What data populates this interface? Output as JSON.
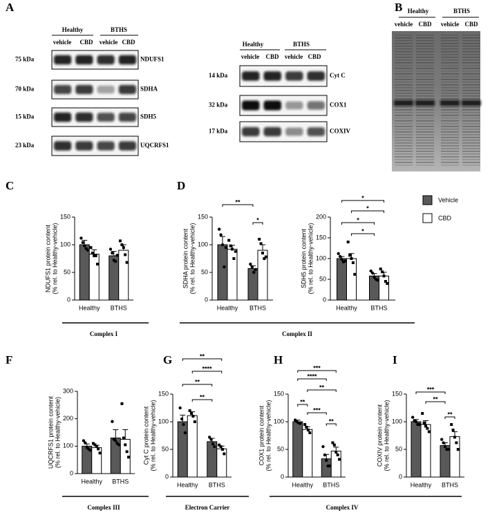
{
  "panels": [
    "A",
    "B",
    "C",
    "D",
    "F",
    "G",
    "H",
    "I"
  ],
  "blots": [
    {
      "groups": [
        "Healthy",
        "BTHS"
      ],
      "lanes": [
        "vehicle",
        "CBD",
        "vehicle",
        "CBD"
      ],
      "rows": [
        {
          "size": "75 kDa",
          "protein": "NDUFS1"
        },
        {
          "size": "70 kDa",
          "protein": "SDHA"
        },
        {
          "size": "15 kDa",
          "protein": "SDH5"
        },
        {
          "size": "23 kDa",
          "protein": "UQCRFS1"
        }
      ]
    },
    {
      "groups": [
        "Healthy",
        "BTHS"
      ],
      "lanes": [
        "vehicle",
        "CBD",
        "vehicle",
        "CBD"
      ],
      "rows": [
        {
          "size": "14 kDa",
          "protein": "Cyt C"
        },
        {
          "size": "32 kDa",
          "protein": "COX1"
        },
        {
          "size": "17 kDa",
          "protein": "COXIV"
        }
      ]
    },
    {
      "groups": [
        "Healthy",
        "BTHS"
      ],
      "lanes": [
        "vehicle",
        "CBD",
        "vehicle",
        "CBD"
      ]
    }
  ],
  "legend": [
    {
      "name": "Vehicle",
      "color": "#595959"
    },
    {
      "name": "CBD",
      "color": "#ffffff"
    }
  ],
  "groups": [
    "Complex I",
    "Complex II",
    "Complex III",
    "Electron Carrier",
    "Complex IV"
  ],
  "chart_data": [
    {
      "type": "bar",
      "ylabel": [
        "NDUFS1 protein content",
        "(% rel. to Healthy-vehicle)"
      ],
      "categories": [
        "Healthy",
        "BTHS"
      ],
      "ylim": [
        0,
        150
      ],
      "yticks": [
        0,
        50,
        100,
        150
      ],
      "series": [
        {
          "values": [
            100,
            80
          ],
          "errors": [
            8,
            8
          ],
          "points": [
            [
              112,
              104,
              98,
              93,
              90
            ],
            [
              92,
              85,
              72,
              70,
              81
            ]
          ]
        },
        {
          "values": [
            83,
            90
          ],
          "errors": [
            8,
            10
          ],
          "points": [
            [
              95,
              85,
              80,
              80,
              65
            ],
            [
              107,
              100,
              95,
              82,
              68
            ]
          ]
        }
      ],
      "significance": []
    },
    {
      "type": "bar",
      "ylabel": [
        "SDHA protein content",
        "(% rel. to Healthy-vehicle)"
      ],
      "categories": [
        "Healthy",
        "BTHS"
      ],
      "ylim": [
        0,
        150
      ],
      "yticks": [
        0,
        50,
        100,
        150
      ],
      "series": [
        {
          "values": [
            100,
            57
          ],
          "errors": [
            15,
            5
          ],
          "points": [
            [
              128,
              118,
              100,
              60,
              95
            ],
            [
              65,
              60,
              50,
              55
            ]
          ]
        },
        {
          "values": [
            92,
            90
          ],
          "errors": [
            7,
            10
          ],
          "points": [
            [
              108,
              98,
              92,
              75,
              88
            ],
            [
              110,
              102,
              85,
              75,
              78
            ]
          ]
        }
      ],
      "significance": [
        {
          "label": "**",
          "between": [
            [
              "Healthy",
              "Vehicle"
            ],
            [
              "BTHS",
              "Vehicle"
            ]
          ]
        },
        {
          "label": "*",
          "between": [
            [
              "BTHS",
              "Vehicle"
            ],
            [
              "BTHS",
              "CBD"
            ]
          ]
        }
      ]
    },
    {
      "type": "bar",
      "ylabel": [
        "SDH5 protein content",
        "(% rel. to Healthy-vehicle)"
      ],
      "categories": [
        "Healthy",
        "BTHS"
      ],
      "ylim": [
        0,
        200
      ],
      "yticks": [
        0,
        50,
        100,
        150,
        200
      ],
      "series": [
        {
          "values": [
            100,
            58
          ],
          "errors": [
            5,
            6
          ],
          "points": [
            [
              112,
              105,
              98,
              92,
              94
            ],
            [
              70,
              65,
              55,
              50,
              48
            ]
          ]
        },
        {
          "values": [
            100,
            58
          ],
          "errors": [
            12,
            9
          ],
          "points": [
            [
              140,
              108,
              100,
              90,
              62
            ],
            [
              75,
              68,
              58,
              45,
              40
            ]
          ]
        }
      ],
      "significance": [
        {
          "label": "*",
          "between": [
            [
              "Healthy",
              "Vehicle"
            ],
            [
              "BTHS",
              "CBD"
            ]
          ]
        },
        {
          "label": "*",
          "between": [
            [
              "Healthy",
              "CBD"
            ],
            [
              "BTHS",
              "CBD"
            ]
          ]
        },
        {
          "label": "*",
          "between": [
            [
              "Healthy",
              "Vehicle"
            ],
            [
              "BTHS",
              "Vehicle"
            ]
          ]
        },
        {
          "label": "*",
          "between": [
            [
              "Healthy",
              "CBD"
            ],
            [
              "BTHS",
              "Vehicle"
            ]
          ]
        }
      ]
    },
    {
      "type": "bar",
      "ylabel": [
        "UQCRFS1 protein content",
        "(% rel. to Healthy-vehicle)"
      ],
      "categories": [
        "Healthy",
        "BTHS"
      ],
      "ylim": [
        0,
        300
      ],
      "yticks": [
        0,
        100,
        200,
        300
      ],
      "series": [
        {
          "values": [
            100,
            130
          ],
          "errors": [
            8,
            30
          ],
          "points": [
            [
              120,
              112,
              95,
              90,
              85
            ],
            [
              190,
              125,
              120,
              110,
              105
            ]
          ]
        },
        {
          "values": [
            95,
            125
          ],
          "errors": [
            8,
            35
          ],
          "points": [
            [
              110,
              105,
              100,
              90,
              75
            ],
            [
              255,
              130,
              105,
              80,
              60
            ]
          ]
        }
      ],
      "significance": []
    },
    {
      "type": "bar",
      "ylabel": [
        "Cyt C protein content",
        "(% rel. to Healthy-vehicle)"
      ],
      "categories": [
        "Healthy",
        "BTHS"
      ],
      "ylim": [
        0,
        150
      ],
      "yticks": [
        0,
        50,
        100,
        150
      ],
      "series": [
        {
          "values": [
            100,
            64
          ],
          "errors": [
            12,
            6
          ],
          "points": [
            [
              125,
              105,
              95,
              80
            ],
            [
              72,
              68,
              60,
              55
            ]
          ]
        },
        {
          "values": [
            111,
            51
          ],
          "errors": [
            7,
            5
          ],
          "points": [
            [
              120,
              115,
              110,
              100
            ],
            [
              58,
              55,
              50,
              42
            ]
          ]
        }
      ],
      "significance": [
        {
          "label": "**",
          "between": [
            [
              "Healthy",
              "Vehicle"
            ],
            [
              "BTHS",
              "CBD"
            ]
          ]
        },
        {
          "label": "****",
          "between": [
            [
              "Healthy",
              "CBD"
            ],
            [
              "BTHS",
              "CBD"
            ]
          ]
        },
        {
          "label": "**",
          "between": [
            [
              "Healthy",
              "Vehicle"
            ],
            [
              "BTHS",
              "Vehicle"
            ]
          ]
        },
        {
          "label": "**",
          "between": [
            [
              "Healthy",
              "CBD"
            ],
            [
              "BTHS",
              "Vehicle"
            ]
          ]
        }
      ]
    },
    {
      "type": "bar",
      "ylabel": [
        "COX1 protein content",
        "(% rel. to Healthy-vehicle)"
      ],
      "categories": [
        "Healthy",
        "BTHS"
      ],
      "ylim": [
        0,
        150
      ],
      "yticks": [
        0,
        50,
        100,
        150
      ],
      "series": [
        {
          "values": [
            100,
            33
          ],
          "errors": [
            3,
            8
          ],
          "points": [
            [
              103,
              100,
              98,
              97
            ],
            [
              55,
              40,
              30,
              20,
              20
            ]
          ]
        },
        {
          "values": [
            86,
            47
          ],
          "errors": [
            5,
            7
          ],
          "points": [
            [
              95,
              90,
              85,
              80
            ],
            [
              62,
              58,
              45,
              40,
              32
            ]
          ]
        }
      ],
      "significance": [
        {
          "label": "***",
          "between": [
            [
              "Healthy",
              "Vehicle"
            ],
            [
              "BTHS",
              "CBD"
            ]
          ]
        },
        {
          "label": "****",
          "between": [
            [
              "Healthy",
              "Vehicle"
            ],
            [
              "BTHS",
              "Vehicle"
            ]
          ]
        },
        {
          "label": "**",
          "between": [
            [
              "Healthy",
              "CBD"
            ],
            [
              "BTHS",
              "CBD"
            ]
          ]
        },
        {
          "label": "**",
          "between": [
            [
              "Healthy",
              "Vehicle"
            ],
            [
              "Healthy",
              "CBD"
            ]
          ]
        },
        {
          "label": "***",
          "between": [
            [
              "Healthy",
              "CBD"
            ],
            [
              "BTHS",
              "Vehicle"
            ]
          ]
        },
        {
          "label": "**",
          "between": [
            [
              "BTHS",
              "Vehicle"
            ],
            [
              "BTHS",
              "CBD"
            ]
          ]
        }
      ]
    },
    {
      "type": "bar",
      "ylabel": [
        "COXIV protein content",
        "(% rel. to Healthy-vehicle)"
      ],
      "categories": [
        "Healthy",
        "BTHS"
      ],
      "ylim": [
        0,
        150
      ],
      "yticks": [
        0,
        50,
        100,
        150
      ],
      "series": [
        {
          "values": [
            100,
            57
          ],
          "errors": [
            4,
            5
          ],
          "points": [
            [
              108,
              102,
              100,
              95,
              95
            ],
            [
              68,
              62,
              55,
              50,
              50
            ]
          ]
        },
        {
          "values": [
            95,
            73
          ],
          "errors": [
            7,
            9
          ],
          "points": [
            [
              115,
              98,
              92,
              88,
              82
            ],
            [
              95,
              85,
              72,
              62,
              50
            ]
          ]
        }
      ],
      "significance": [
        {
          "label": "***",
          "between": [
            [
              "Healthy",
              "Vehicle"
            ],
            [
              "BTHS",
              "Vehicle"
            ]
          ]
        },
        {
          "label": "**",
          "between": [
            [
              "Healthy",
              "CBD"
            ],
            [
              "BTHS",
              "Vehicle"
            ]
          ]
        },
        {
          "label": "**",
          "between": [
            [
              "BTHS",
              "Vehicle"
            ],
            [
              "BTHS",
              "CBD"
            ]
          ]
        }
      ]
    }
  ]
}
